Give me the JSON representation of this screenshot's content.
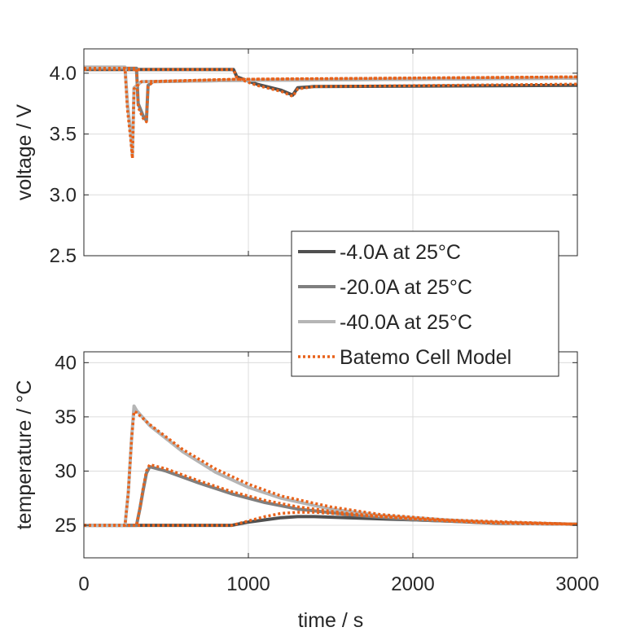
{
  "colors": {
    "s4": "#505050",
    "s20": "#7f7f7f",
    "s40": "#b5b5b5",
    "model": "#e8621a"
  },
  "legend": {
    "placement": "center-right",
    "entries": [
      "-4.0A at 25°C",
      "-20.0A at 25°C",
      "-40.0A at 25°C",
      "Batemo Cell Model"
    ]
  },
  "chart_data": [
    {
      "type": "line",
      "title": "",
      "xlabel": "",
      "ylabel": "voltage / V",
      "xlim": [
        0,
        3000
      ],
      "ylim": [
        2.5,
        4.2
      ],
      "yticks": [
        "4.0",
        "3.5",
        "3.0",
        "2.5"
      ],
      "ytick_values": [
        4.0,
        3.5,
        3.0,
        2.5
      ],
      "grid": true,
      "series": [
        {
          "name": "-4.0A at 25°C",
          "x": [
            0,
            300,
            910,
            930,
            1050,
            1200,
            1270,
            1300,
            1400,
            3000
          ],
          "y": [
            4.03,
            4.03,
            4.03,
            3.97,
            3.91,
            3.86,
            3.82,
            3.88,
            3.89,
            3.9
          ]
        },
        {
          "name": "-20.0A at 25°C",
          "x": [
            0,
            320,
            330,
            360,
            380,
            390,
            420,
            900,
            3000
          ],
          "y": [
            4.04,
            4.04,
            3.75,
            3.65,
            3.61,
            3.9,
            3.93,
            3.94,
            3.96
          ]
        },
        {
          "name": "-40.0A at 25°C",
          "x": [
            0,
            250,
            265,
            285,
            295,
            305,
            350,
            900,
            3000
          ],
          "y": [
            4.05,
            4.05,
            3.75,
            3.5,
            3.32,
            3.88,
            3.93,
            3.94,
            3.96
          ]
        },
        {
          "name": "Batemo Cell Model",
          "x": [
            0,
            250,
            265,
            285,
            295,
            305,
            350,
            900,
            3000
          ],
          "y": [
            4.04,
            4.04,
            3.7,
            3.45,
            3.3,
            3.87,
            3.93,
            3.95,
            3.97
          ]
        },
        {
          "name": "Batemo Cell Model",
          "x": [
            0,
            320,
            330,
            360,
            380,
            390,
            420,
            900,
            3000
          ],
          "y": [
            4.04,
            4.04,
            3.72,
            3.63,
            3.6,
            3.89,
            3.93,
            3.95,
            3.97
          ]
        },
        {
          "name": "Batemo Cell Model",
          "x": [
            0,
            910,
            930,
            1050,
            1200,
            1270,
            1300,
            1400,
            3000
          ],
          "y": [
            4.03,
            4.03,
            3.96,
            3.9,
            3.85,
            3.81,
            3.87,
            3.89,
            3.91
          ]
        }
      ]
    },
    {
      "type": "line",
      "title": "",
      "xlabel": "time / s",
      "ylabel": "temperature / °C",
      "xlim": [
        0,
        3000
      ],
      "ylim": [
        22,
        41
      ],
      "xticks": [
        "0",
        "1000",
        "2000",
        "3000"
      ],
      "xtick_values": [
        0,
        1000,
        2000,
        3000
      ],
      "yticks": [
        "40",
        "35",
        "30",
        "25"
      ],
      "ytick_values": [
        40,
        35,
        30,
        25
      ],
      "grid": true,
      "series": [
        {
          "name": "-4.0A at 25°C",
          "x": [
            0,
            900,
            1000,
            1100,
            1200,
            1300,
            1400,
            1600,
            1800,
            2000,
            2200,
            2500,
            3000
          ],
          "y": [
            25.0,
            25.0,
            25.3,
            25.5,
            25.7,
            25.8,
            25.8,
            25.7,
            25.6,
            25.5,
            25.4,
            25.2,
            25.1
          ]
        },
        {
          "name": "-20.0A at 25°C",
          "x": [
            0,
            320,
            340,
            360,
            380,
            400,
            500,
            700,
            900,
            1100,
            1300,
            1600,
            2000,
            2400,
            3000
          ],
          "y": [
            25.0,
            25.0,
            26.5,
            28.2,
            29.8,
            30.4,
            30.0,
            28.9,
            27.9,
            27.1,
            26.5,
            26.0,
            25.5,
            25.3,
            25.1
          ]
        },
        {
          "name": "-40.0A at 25°C",
          "x": [
            0,
            250,
            270,
            290,
            305,
            320,
            400,
            600,
            800,
            1000,
            1200,
            1500,
            1800,
            2200,
            2600,
            3000
          ],
          "y": [
            25.0,
            25.0,
            28.0,
            33.0,
            36.0,
            35.6,
            34.2,
            31.8,
            29.9,
            28.5,
            27.5,
            26.5,
            25.9,
            25.5,
            25.2,
            25.1
          ]
        },
        {
          "name": "Batemo Cell Model",
          "x": [
            0,
            250,
            270,
            290,
            305,
            320,
            400,
            600,
            800,
            1000,
            1200,
            1500,
            1800,
            2200,
            2600,
            3000
          ],
          "y": [
            25.0,
            25.0,
            28.0,
            33.0,
            35.5,
            35.4,
            34.3,
            32.0,
            30.2,
            28.8,
            27.7,
            26.7,
            26.0,
            25.5,
            25.3,
            25.1
          ]
        },
        {
          "name": "Batemo Cell Model",
          "x": [
            0,
            320,
            340,
            360,
            380,
            400,
            500,
            700,
            900,
            1100,
            1300,
            1600,
            2000,
            2400,
            3000
          ],
          "y": [
            25.0,
            25.0,
            26.5,
            28.4,
            30.0,
            30.6,
            30.2,
            29.1,
            28.1,
            27.3,
            26.7,
            26.1,
            25.6,
            25.3,
            25.1
          ]
        },
        {
          "name": "Batemo Cell Model",
          "x": [
            0,
            900,
            1000,
            1100,
            1200,
            1300,
            1400,
            1600,
            1800,
            2000,
            2200,
            2500,
            3000
          ],
          "y": [
            25.0,
            25.0,
            25.4,
            25.8,
            26.1,
            26.2,
            26.2,
            26.0,
            25.8,
            25.6,
            25.4,
            25.2,
            25.1
          ]
        }
      ]
    }
  ]
}
